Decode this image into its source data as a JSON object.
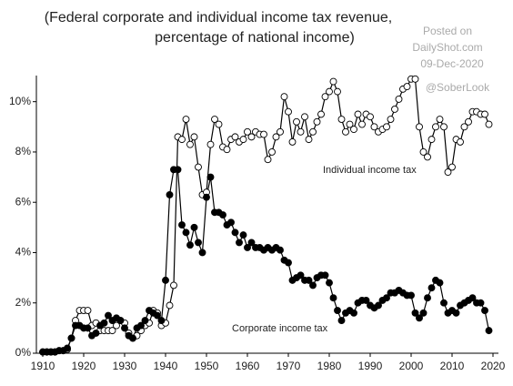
{
  "chart_data": {
    "type": "line",
    "title": "(Federal corporate and individual income tax revenue,",
    "subtitle": "percentage of national income)",
    "annotations": [
      "Individual income tax",
      "Corporate income tax"
    ],
    "watermark": [
      "Posted on",
      "DailyShot.com",
      "09-Dec-2020",
      "@SoberLook"
    ],
    "x": [
      1910,
      1911,
      1912,
      1913,
      1914,
      1915,
      1916,
      1917,
      1918,
      1919,
      1920,
      1921,
      1922,
      1923,
      1924,
      1925,
      1926,
      1927,
      1928,
      1929,
      1930,
      1931,
      1932,
      1933,
      1934,
      1935,
      1936,
      1937,
      1938,
      1939,
      1940,
      1941,
      1942,
      1943,
      1944,
      1945,
      1946,
      1947,
      1948,
      1949,
      1950,
      1951,
      1952,
      1953,
      1954,
      1955,
      1956,
      1957,
      1958,
      1959,
      1960,
      1961,
      1962,
      1963,
      1964,
      1965,
      1966,
      1967,
      1968,
      1969,
      1970,
      1971,
      1972,
      1973,
      1974,
      1975,
      1976,
      1977,
      1978,
      1979,
      1980,
      1981,
      1982,
      1983,
      1984,
      1985,
      1986,
      1987,
      1988,
      1989,
      1990,
      1991,
      1992,
      1993,
      1994,
      1995,
      1996,
      1997,
      1998,
      1999,
      2000,
      2001,
      2002,
      2003,
      2004,
      2005,
      2006,
      2007,
      2008,
      2009,
      2010,
      2011,
      2012,
      2013,
      2014,
      2015,
      2016,
      2017,
      2018,
      2019
    ],
    "series": [
      {
        "name": "Individual income tax",
        "color": "#ffffff",
        "values": [
          0.05,
          0.05,
          0.05,
          0.05,
          0.1,
          0.1,
          0.15,
          0.6,
          1.3,
          1.7,
          1.7,
          1.7,
          1.1,
          1.2,
          0.9,
          0.9,
          0.9,
          0.9,
          1.1,
          1.3,
          1.2,
          0.8,
          0.6,
          0.7,
          0.9,
          1.1,
          1.2,
          1.7,
          1.6,
          1.1,
          1.2,
          1.9,
          2.7,
          8.6,
          8.5,
          9.3,
          8.3,
          8.6,
          7.4,
          6.3,
          6.4,
          8.3,
          9.3,
          9.1,
          8.2,
          8.1,
          8.5,
          8.6,
          8.4,
          8.5,
          8.8,
          8.6,
          8.8,
          8.7,
          8.7,
          7.7,
          8.0,
          8.6,
          8.8,
          10.2,
          9.6,
          8.4,
          9.2,
          8.8,
          9.4,
          8.5,
          8.8,
          9.2,
          9.5,
          10.2,
          10.4,
          10.8,
          10.4,
          9.3,
          8.8,
          9.1,
          8.9,
          9.5,
          9.1,
          9.5,
          9.4,
          9.0,
          8.8,
          8.9,
          9.0,
          9.3,
          9.7,
          10.1,
          10.5,
          10.6,
          10.9,
          10.9,
          9.0,
          8.0,
          7.8,
          8.5,
          9.0,
          9.3,
          9.0,
          7.2,
          7.4,
          8.5,
          8.4,
          9.0,
          9.2,
          9.6,
          9.6,
          9.5,
          9.5,
          9.1
        ]
      },
      {
        "name": "Corporate income tax",
        "color": "#000000",
        "values": [
          0.05,
          0.05,
          0.05,
          0.05,
          0.1,
          0.1,
          0.2,
          0.6,
          1.1,
          1.1,
          1.0,
          1.0,
          0.7,
          0.8,
          1.1,
          1.2,
          1.5,
          1.3,
          1.4,
          1.3,
          1.0,
          0.7,
          0.6,
          1.0,
          1.1,
          1.3,
          1.7,
          1.6,
          1.5,
          1.3,
          2.9,
          6.3,
          7.3,
          7.3,
          5.1,
          4.8,
          4.3,
          5.0,
          4.4,
          4.0,
          6.2,
          7.0,
          5.6,
          5.6,
          5.5,
          5.1,
          5.2,
          4.8,
          4.4,
          4.7,
          4.2,
          4.4,
          4.2,
          4.2,
          4.1,
          4.2,
          4.1,
          4.2,
          4.1,
          3.7,
          3.6,
          2.9,
          3.0,
          3.1,
          2.9,
          2.9,
          2.7,
          3.0,
          3.1,
          3.1,
          2.8,
          2.2,
          1.7,
          1.3,
          1.6,
          1.7,
          1.6,
          2.0,
          2.1,
          2.1,
          1.9,
          1.8,
          1.9,
          2.1,
          2.2,
          2.4,
          2.4,
          2.5,
          2.4,
          2.3,
          2.3,
          1.6,
          1.4,
          1.6,
          2.2,
          2.6,
          2.9,
          2.8,
          2.0,
          1.6,
          1.7,
          1.6,
          1.9,
          2.0,
          2.1,
          2.2,
          2.0,
          2.0,
          1.7,
          0.9
        ]
      }
    ],
    "xlim": [
      1908,
      2022
    ],
    "xticks": [
      1910,
      1920,
      1930,
      1940,
      1950,
      1960,
      1970,
      1980,
      1990,
      2000,
      2010,
      2020
    ],
    "ylim": [
      0,
      11.4
    ],
    "yticks": [
      {
        "value": 0,
        "label": "0%"
      },
      {
        "value": 2,
        "label": "2%"
      },
      {
        "value": 4,
        "label": "4%"
      },
      {
        "value": 6,
        "label": "6%"
      },
      {
        "value": 8,
        "label": "8%"
      },
      {
        "value": 10,
        "label": "10%"
      }
    ],
    "line_color": "#000000"
  }
}
